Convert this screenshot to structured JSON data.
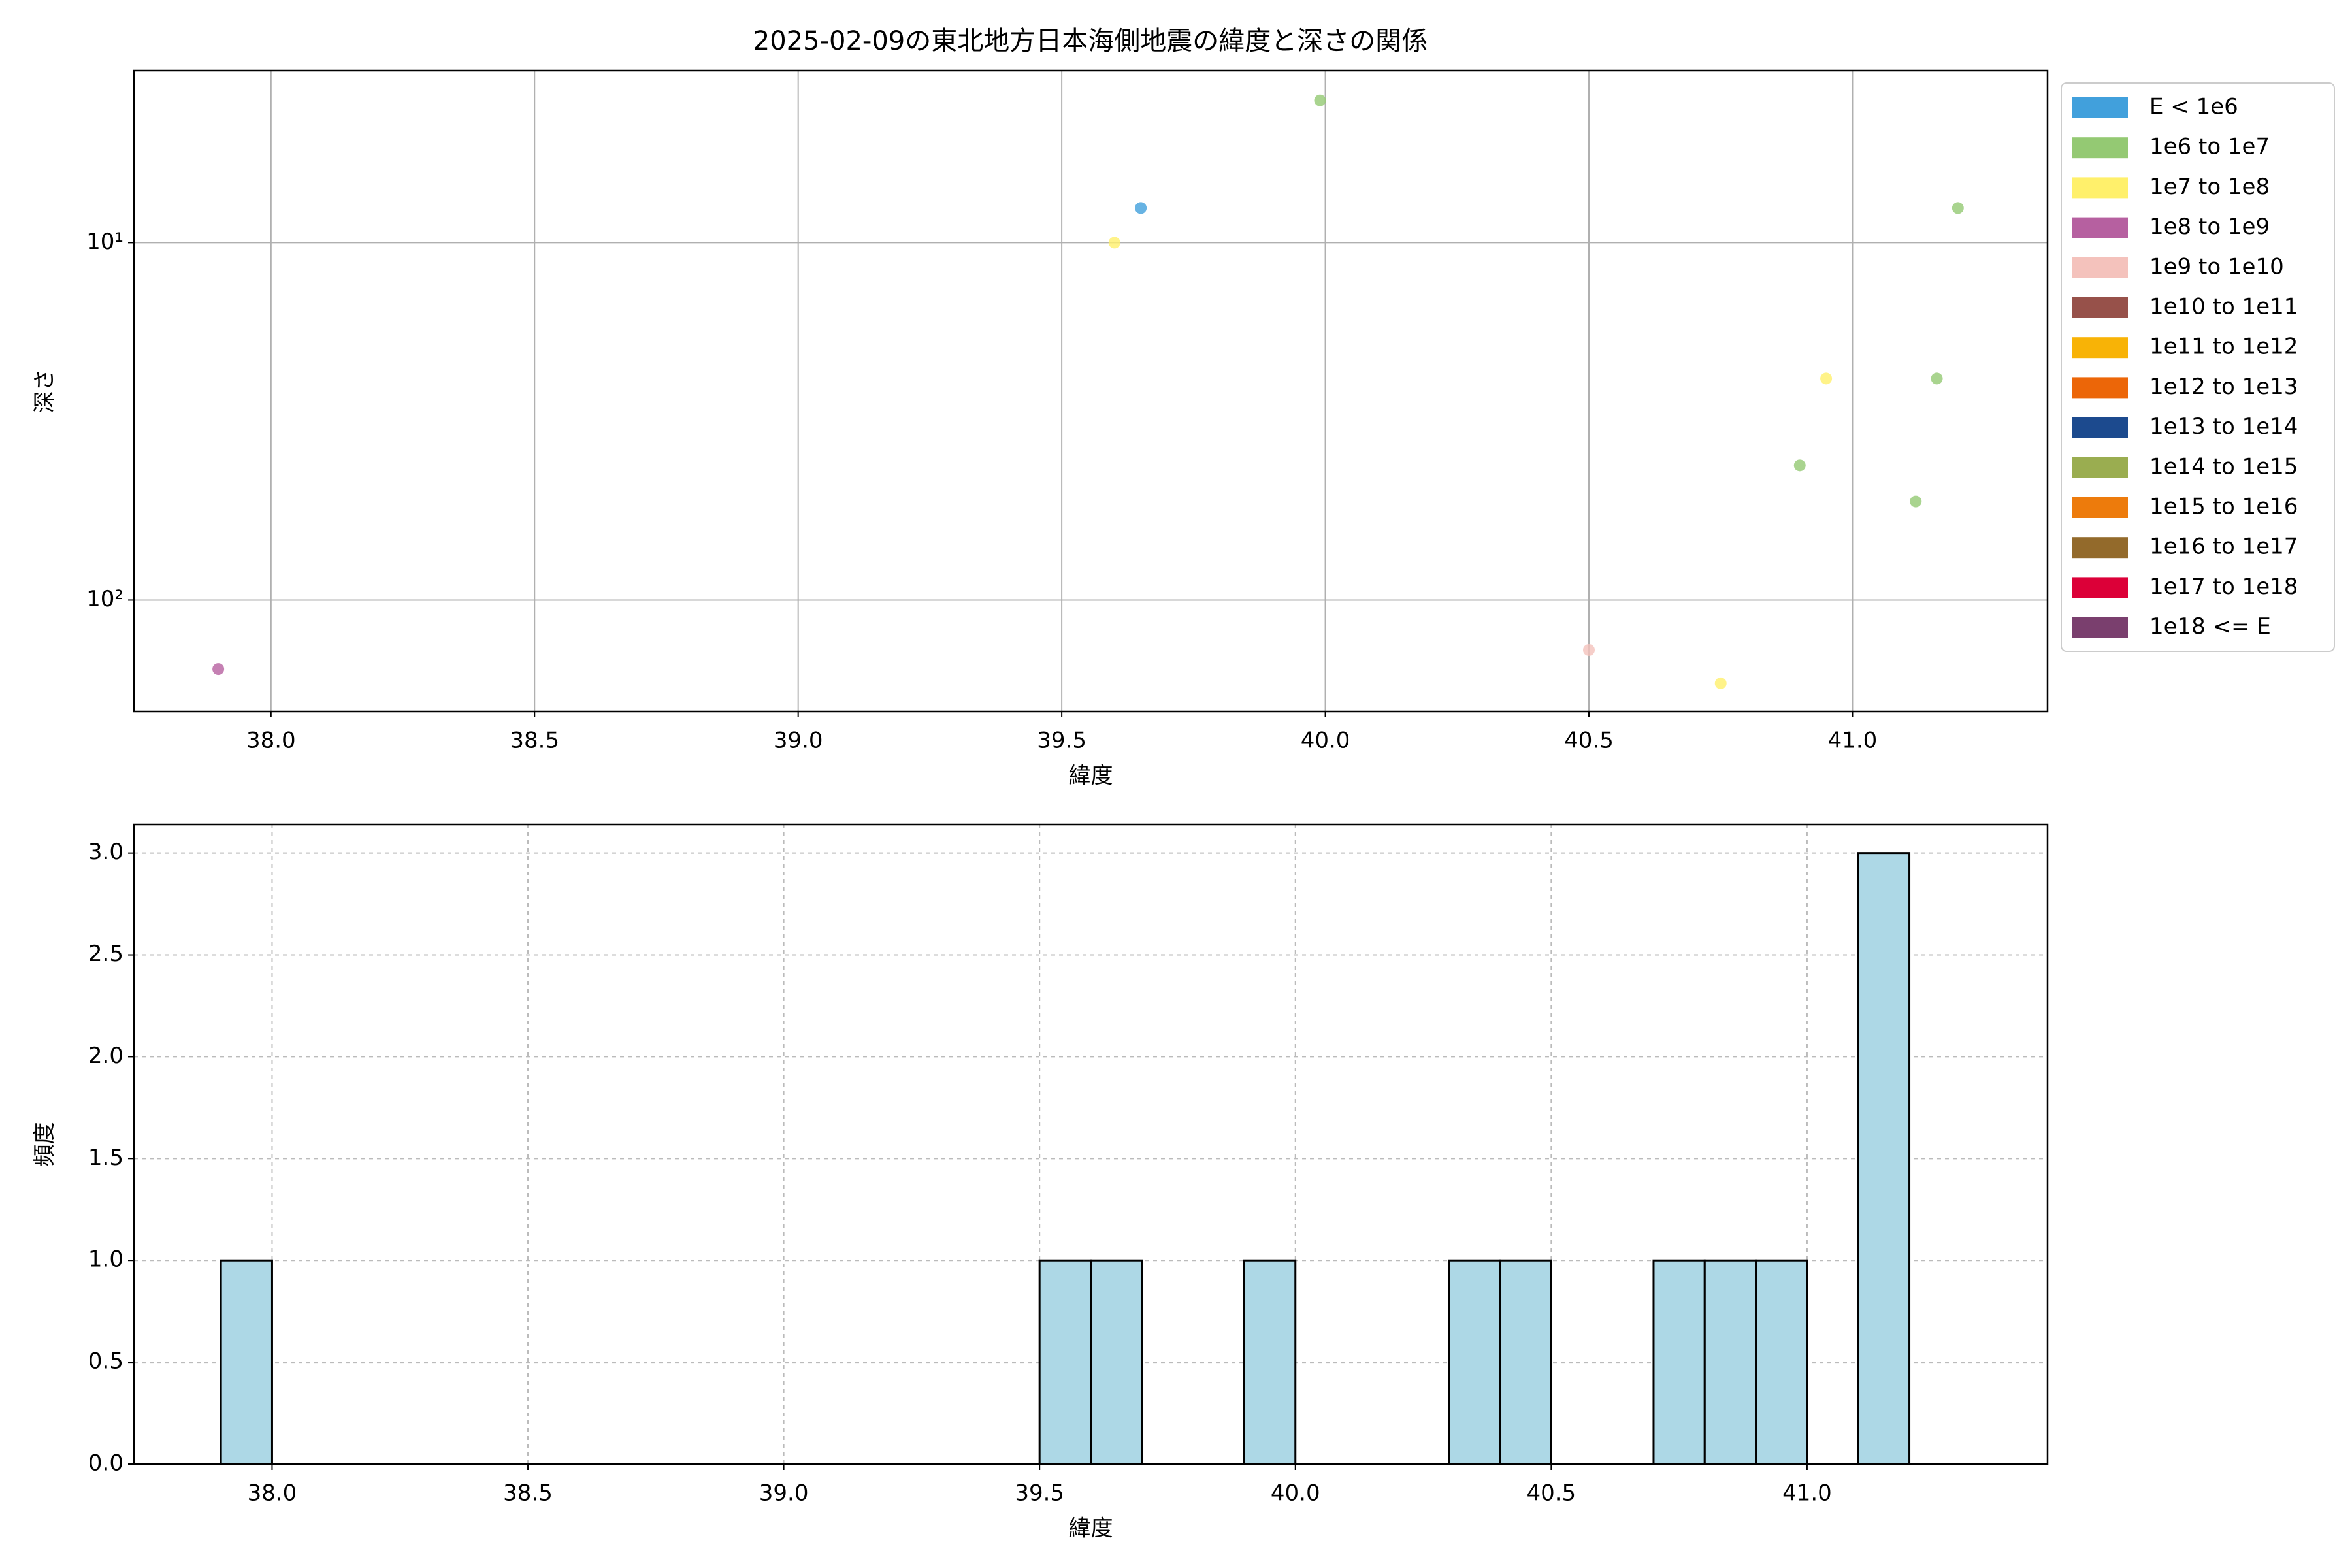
{
  "chart_data": [
    {
      "type": "scatter",
      "title": "2025-02-09の東北地方日本海側地震の緯度と深さの関係",
      "x_label": "緯度",
      "y_label": "深さ",
      "yscale": "log",
      "y_inverted": true,
      "grid": true,
      "grid_linestyle": "solid",
      "legend": "outside right",
      "xlim": [
        37.74,
        41.37
      ],
      "ylim": [
        3.3,
        205
      ],
      "xticks": [
        {
          "value": 38,
          "label": "38.0"
        },
        {
          "value": 38.5,
          "label": "38.5"
        },
        {
          "value": 39,
          "label": "39.0"
        },
        {
          "value": 39.5,
          "label": "39.5"
        },
        {
          "value": 40,
          "label": "40.0"
        },
        {
          "value": 40.5,
          "label": "40.5"
        },
        {
          "value": 41,
          "label": "41.0"
        }
      ],
      "yticks": [
        {
          "value": 10,
          "label": "10¹"
        },
        {
          "value": 100,
          "label": "10²"
        }
      ],
      "series": [
        {
          "name": "E < 1e6",
          "color": "#41a0dc",
          "x": [
            39.65
          ],
          "values": [
            8
          ]
        },
        {
          "name": "1e6 to 1e7",
          "color": "#94c973",
          "x": [
            39.99,
            41.2,
            41.16,
            40.9,
            41.12
          ],
          "values": [
            4,
            8,
            24,
            42,
            53
          ]
        },
        {
          "name": "1e7 to 1e8",
          "color": "#fff06b",
          "x": [
            39.6,
            40.95,
            40.75
          ],
          "values": [
            10,
            24,
            171
          ]
        },
        {
          "name": "1e8 to 1e9",
          "color": "#b660a0",
          "x": [
            37.9
          ],
          "values": [
            156
          ]
        },
        {
          "name": "1e9 to 1e10",
          "color": "#f4c2bc",
          "x": [
            40.5
          ],
          "values": [
            138
          ]
        },
        {
          "name": "1e10 to 1e11",
          "color": "#97514a",
          "x": [],
          "values": []
        },
        {
          "name": "1e11 to 1e12",
          "color": "#f8b306",
          "x": [],
          "values": []
        },
        {
          "name": "1e12 to 1e13",
          "color": "#ec6608",
          "x": [],
          "values": []
        },
        {
          "name": "1e13 to 1e14",
          "color": "#1c4a8e",
          "x": [],
          "values": []
        },
        {
          "name": "1e14 to 1e15",
          "color": "#9aad50",
          "x": [],
          "values": []
        },
        {
          "name": "1e15 to 1e16",
          "color": "#ed7b0c",
          "x": [],
          "values": []
        },
        {
          "name": "1e16 to 1e17",
          "color": "#936a2b",
          "x": [],
          "values": []
        },
        {
          "name": "1e17 to 1e18",
          "color": "#dc0038",
          "x": [],
          "values": []
        },
        {
          "name": "1e18 <= E",
          "color": "#7a3f6e",
          "x": [],
          "values": []
        }
      ]
    },
    {
      "type": "histogram",
      "x_label": "緯度",
      "y_label": "頻度",
      "color": "#add8e6",
      "edge_color": "#000000",
      "grid": true,
      "grid_linestyle": "dashed",
      "xlim": [
        37.73,
        41.47
      ],
      "ylim": [
        0,
        3.14
      ],
      "xticks": [
        {
          "value": 38,
          "label": "38.0"
        },
        {
          "value": 38.5,
          "label": "38.5"
        },
        {
          "value": 39,
          "label": "39.0"
        },
        {
          "value": 39.5,
          "label": "39.5"
        },
        {
          "value": 40,
          "label": "40.0"
        },
        {
          "value": 40.5,
          "label": "40.5"
        },
        {
          "value": 41,
          "label": "41.0"
        }
      ],
      "yticks": [
        {
          "value": 0,
          "label": "0.0"
        },
        {
          "value": 0.5,
          "label": "0.5"
        },
        {
          "value": 1,
          "label": "1.0"
        },
        {
          "value": 1.5,
          "label": "1.5"
        },
        {
          "value": 2,
          "label": "2.0"
        },
        {
          "value": 2.5,
          "label": "2.5"
        },
        {
          "value": 3,
          "label": "3.0"
        }
      ],
      "bins": [
        37.9,
        38.0,
        38.1,
        38.2,
        38.3,
        38.4,
        38.5,
        38.6,
        38.7,
        38.8,
        38.9,
        39.0,
        39.1,
        39.2,
        39.3,
        39.4,
        39.5,
        39.6,
        39.7,
        39.8,
        39.9,
        40.0,
        40.1,
        40.2,
        40.3,
        40.4,
        40.5,
        40.6,
        40.7,
        40.8,
        40.9,
        41.0,
        41.1,
        41.2,
        41.3
      ],
      "values": [
        1,
        0,
        0,
        0,
        0,
        0,
        0,
        0,
        0,
        0,
        0,
        0,
        0,
        0,
        0,
        0,
        1,
        1,
        0,
        0,
        1,
        0,
        0,
        0,
        1,
        1,
        0,
        0,
        1,
        1,
        1,
        0,
        3,
        0
      ]
    }
  ]
}
